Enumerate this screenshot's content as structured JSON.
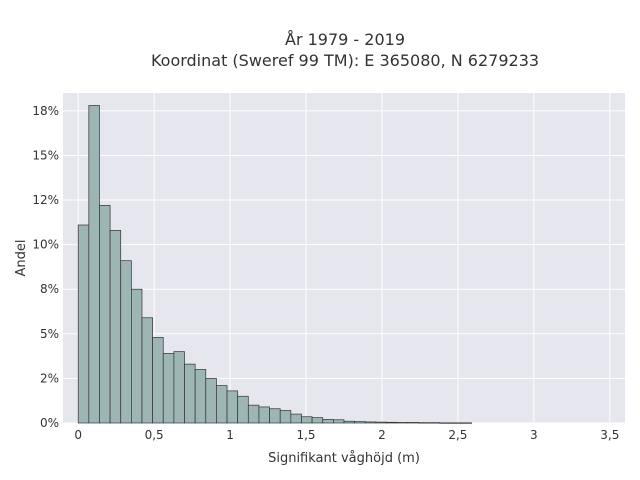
{
  "chart_data": {
    "type": "bar",
    "title_line1": "År 1979 - 2019",
    "title_line2": "Koordinat (Sweref 99 TM): E 365080, N 6279233",
    "xlabel": "Signifikant våghöjd (m)",
    "ylabel": "Andel",
    "xlim": [
      -0.1,
      3.6
    ],
    "ylim": [
      0,
      18.5
    ],
    "grid": true,
    "colors": {
      "plot_bg": "#E5E6EE",
      "grid": "#FFFFFF",
      "bar_fill": "#9DB5B5",
      "bar_edge": "#333333"
    },
    "x_ticks": [
      {
        "value": 0,
        "label": "0"
      },
      {
        "value": 0.5,
        "label": "0,5"
      },
      {
        "value": 1,
        "label": "1"
      },
      {
        "value": 1.5,
        "label": "1,5"
      },
      {
        "value": 2,
        "label": "2"
      },
      {
        "value": 2.5,
        "label": "2,5"
      },
      {
        "value": 3,
        "label": "3"
      },
      {
        "value": 3.5,
        "label": "3,5"
      }
    ],
    "y_ticks": [
      {
        "value": 0,
        "label": "0%"
      },
      {
        "value": 2.5,
        "label": "2%"
      },
      {
        "value": 5,
        "label": "5%"
      },
      {
        "value": 7.5,
        "label": "8%"
      },
      {
        "value": 10,
        "label": "10%"
      },
      {
        "value": 12.5,
        "label": "12%"
      },
      {
        "value": 15,
        "label": "15%"
      },
      {
        "value": 17.5,
        "label": "18%"
      }
    ],
    "bin_width": 0.07,
    "x": [
      0,
      0.07,
      0.14,
      0.21,
      0.28,
      0.35,
      0.42,
      0.49,
      0.56,
      0.63,
      0.7,
      0.77,
      0.84,
      0.91,
      0.98,
      1.05,
      1.12,
      1.19,
      1.26,
      1.33,
      1.4,
      1.47,
      1.54,
      1.61,
      1.68,
      1.75,
      1.82,
      1.89,
      1.96,
      2.03,
      2.1,
      2.17,
      2.24,
      2.31,
      2.38,
      2.45,
      2.52
    ],
    "values": [
      11.1,
      17.8,
      12.2,
      10.8,
      9.1,
      7.5,
      5.9,
      4.8,
      3.9,
      4.0,
      3.3,
      3.0,
      2.5,
      2.1,
      1.8,
      1.5,
      1.0,
      0.9,
      0.8,
      0.7,
      0.5,
      0.35,
      0.3,
      0.2,
      0.18,
      0.1,
      0.08,
      0.06,
      0.05,
      0.04,
      0.03,
      0.03,
      0.02,
      0.02,
      0.01,
      0.01,
      0.01
    ]
  }
}
